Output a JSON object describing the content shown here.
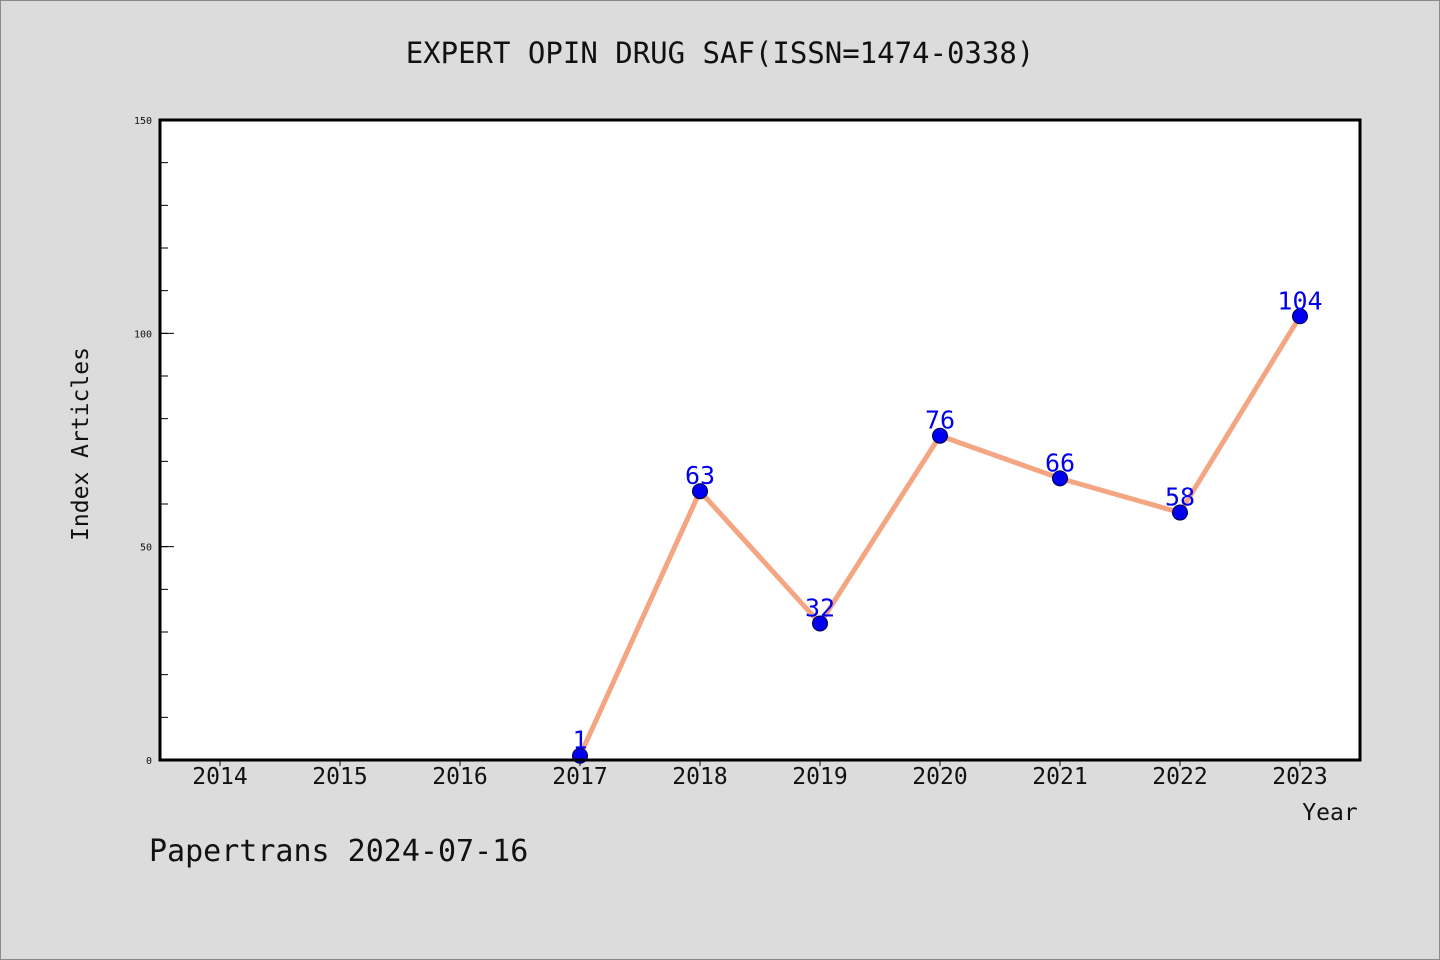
{
  "chart_data": {
    "type": "line",
    "title": "EXPERT OPIN DRUG SAF(ISSN=1474-0338)",
    "xlabel": "Year",
    "ylabel": "Index Articles",
    "categories": [
      "2014",
      "2015",
      "2016",
      "2017",
      "2018",
      "2019",
      "2020",
      "2021",
      "2022",
      "2023"
    ],
    "series": [
      {
        "points": [
          {
            "x": "2017",
            "y": 1
          },
          {
            "x": "2018",
            "y": 63
          },
          {
            "x": "2019",
            "y": 32
          },
          {
            "x": "2020",
            "y": 76
          },
          {
            "x": "2021",
            "y": 66
          },
          {
            "x": "2022",
            "y": 58
          },
          {
            "x": "2023",
            "y": 104
          }
        ],
        "line_color": "#f4a582",
        "marker_color": "#0000ee"
      }
    ],
    "ylim": [
      0,
      150
    ],
    "yticks": [
      0,
      50,
      100,
      150
    ],
    "y_minor_step": 10,
    "grid": false,
    "legend": "none",
    "data_labels": true
  },
  "footer": {
    "text": "Papertrans 2024-07-16"
  }
}
